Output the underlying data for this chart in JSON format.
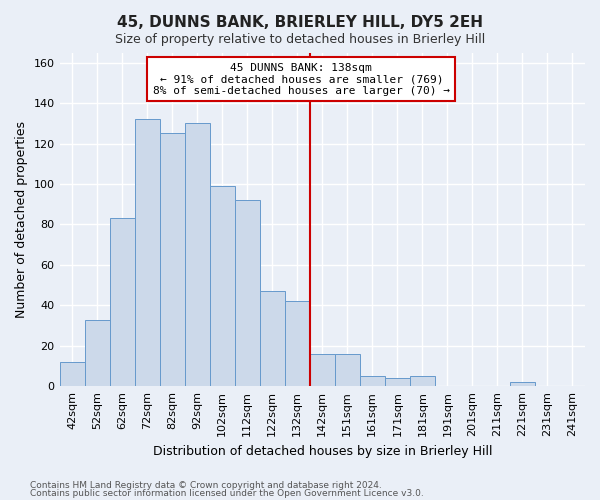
{
  "title": "45, DUNNS BANK, BRIERLEY HILL, DY5 2EH",
  "subtitle": "Size of property relative to detached houses in Brierley Hill",
  "xlabel": "Distribution of detached houses by size in Brierley Hill",
  "ylabel": "Number of detached properties",
  "bar_labels": [
    "42sqm",
    "52sqm",
    "62sqm",
    "72sqm",
    "82sqm",
    "92sqm",
    "102sqm",
    "112sqm",
    "122sqm",
    "132sqm",
    "142sqm",
    "151sqm",
    "161sqm",
    "171sqm",
    "181sqm",
    "191sqm",
    "201sqm",
    "211sqm",
    "221sqm",
    "231sqm",
    "241sqm"
  ],
  "bar_values": [
    12,
    33,
    83,
    132,
    125,
    130,
    99,
    92,
    47,
    42,
    16,
    16,
    5,
    4,
    5,
    0,
    0,
    0,
    2,
    0,
    0
  ],
  "bar_color": "#ccd9ea",
  "bar_edgecolor": "#6699cc",
  "vline_x_index": 9.5,
  "ylim": [
    0,
    165
  ],
  "yticks": [
    0,
    20,
    40,
    60,
    80,
    100,
    120,
    140,
    160
  ],
  "annotation_title": "45 DUNNS BANK: 138sqm",
  "annotation_line1": "← 91% of detached houses are smaller (769)",
  "annotation_line2": "8% of semi-detached houses are larger (70) →",
  "annotation_box_facecolor": "#ffffff",
  "annotation_box_edgecolor": "#cc0000",
  "vline_color": "#cc0000",
  "footnote1": "Contains HM Land Registry data © Crown copyright and database right 2024.",
  "footnote2": "Contains public sector information licensed under the Open Government Licence v3.0.",
  "background_color": "#eaeff7",
  "grid_color": "#ffffff",
  "title_fontsize": 11,
  "subtitle_fontsize": 9,
  "ylabel_fontsize": 9,
  "xlabel_fontsize": 9,
  "tick_fontsize": 8,
  "annotation_fontsize": 8,
  "footnote_fontsize": 6.5
}
